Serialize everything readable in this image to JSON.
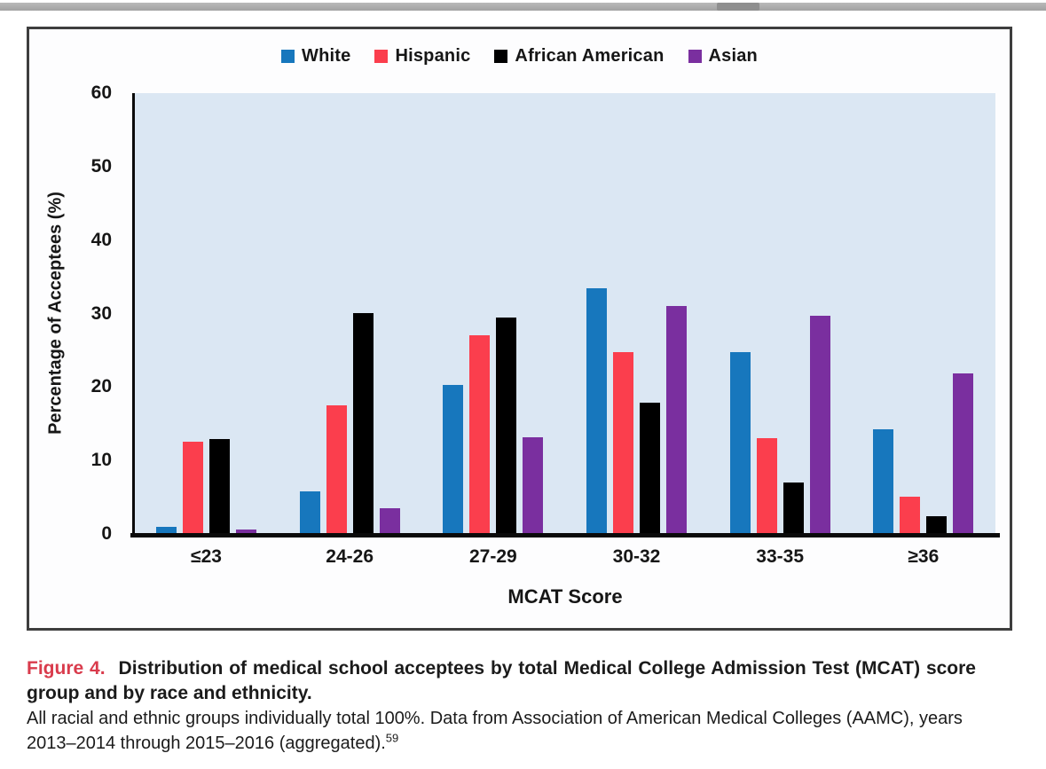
{
  "colors": {
    "white_series": "#1777bd",
    "hispanic_series": "#fb3e4d",
    "african_american_series": "#000000",
    "asian_series": "#7a2f9f",
    "plot_background": "#dbe7f3",
    "figure_label_red": "#d93b4c",
    "axis_black": "#0a0a0a"
  },
  "chart_data": {
    "type": "bar",
    "title": "",
    "categories": [
      "≤23",
      "24-26",
      "27-29",
      "30-32",
      "33-35",
      "≥36"
    ],
    "series": [
      {
        "name": "White",
        "color": "#1777bd",
        "values": [
          1.0,
          5.8,
          20.3,
          33.5,
          24.8,
          14.3
        ]
      },
      {
        "name": "Hispanic",
        "color": "#fb3e4d",
        "values": [
          12.5,
          17.5,
          27.0,
          24.8,
          13.0,
          5.1
        ]
      },
      {
        "name": "African American",
        "color": "#000000",
        "values": [
          12.9,
          30.1,
          29.5,
          17.9,
          7.0,
          2.4
        ]
      },
      {
        "name": "Asian",
        "color": "#7a2f9f",
        "values": [
          0.6,
          3.5,
          13.2,
          31.0,
          29.7,
          21.9
        ]
      }
    ],
    "xlabel": "MCAT Score",
    "ylabel": "Percentage of Acceptees (%)",
    "ylim": [
      0,
      60
    ],
    "yticks": [
      0,
      10,
      20,
      30,
      40,
      50,
      60
    ],
    "legend_position": "top-center",
    "grid": false
  },
  "caption": {
    "label": "Figure 4.",
    "title": "Distribution of medical school acceptees by total Medical College Admission Test (MCAT) score group and by race and ethnicity.",
    "body": "All racial and ethnic groups individually total 100%. Data from Association of American Medical Colleges (AAMC), years 2013–2014 through 2015–2016 (aggregated).",
    "reference_superscript": "59"
  }
}
